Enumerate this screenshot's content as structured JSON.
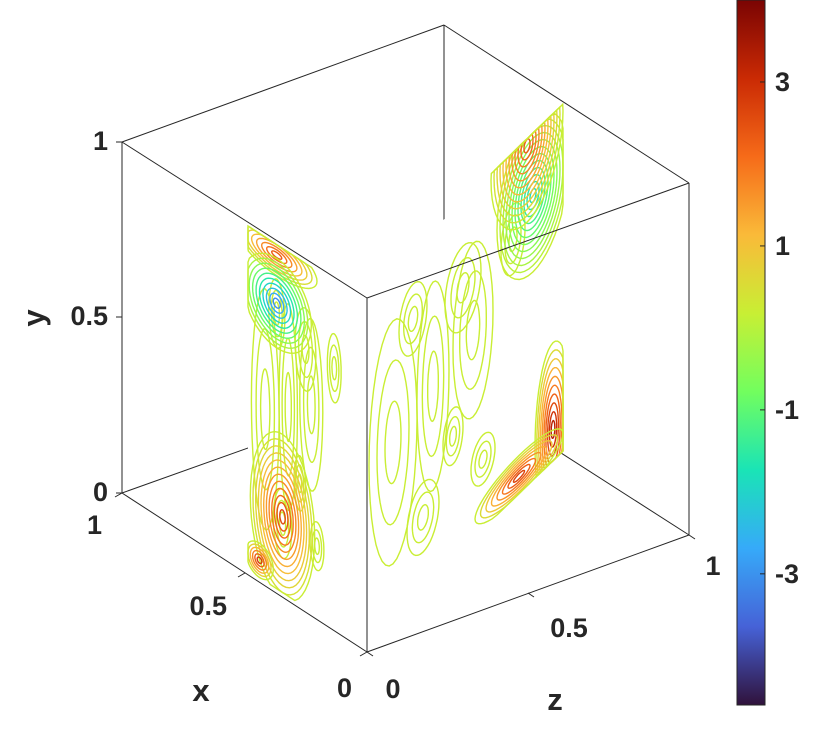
{
  "chart_data": {
    "type": "contour",
    "axes": {
      "x": {
        "label": "x",
        "range": [
          0,
          1
        ],
        "ticks": [
          "0",
          "0.5",
          "1"
        ]
      },
      "y": {
        "label": "y",
        "range": [
          0,
          1
        ],
        "ticks": [
          "0",
          "0.5",
          "1"
        ]
      },
      "z": {
        "label": "z",
        "range": [
          0,
          1
        ],
        "ticks": [
          "0",
          "0.5",
          "1"
        ]
      }
    },
    "colorbar": {
      "range": [
        -4.6,
        4.0
      ],
      "ticks": [
        {
          "value": 3,
          "label": "3"
        },
        {
          "value": 1,
          "label": "1"
        },
        {
          "value": -1,
          "label": "-1"
        },
        {
          "value": -3,
          "label": "-3"
        }
      ],
      "colormap": "turbo",
      "colors": [
        "#30123b",
        "#4662d7",
        "#36aaf9",
        "#1ae4b6",
        "#72fe5e",
        "#c8ef34",
        "#faba39",
        "#f66b19",
        "#ca2a04",
        "#7a0403"
      ]
    },
    "slices": [
      {
        "plane": "x = 0.5",
        "extrema": [
          {
            "y": 0.09,
            "z": 0.05,
            "value": 3.6,
            "kind": "max"
          },
          {
            "y": 0.82,
            "z": 0.05,
            "value": -2.0,
            "kind": "min"
          },
          {
            "y": 0.98,
            "z": 0.1,
            "value": 2.5,
            "kind": "max"
          },
          {
            "y": 0.05,
            "z": 0.07,
            "value": -3.0,
            "kind": "min"
          }
        ]
      },
      {
        "plane": "z = 0.5",
        "extrema": [
          {
            "x": 0.09,
            "y": 0.98,
            "value": 2.8,
            "kind": "max"
          },
          {
            "x": 0.09,
            "y": 0.22,
            "value": -3.4,
            "kind": "min"
          },
          {
            "x": 0.02,
            "y": 0.3,
            "value": 3.8,
            "kind": "max"
          },
          {
            "x": 0.12,
            "y": 0.02,
            "value": 2.6,
            "kind": "max"
          }
        ]
      }
    ],
    "grid": false,
    "box": true,
    "legend": "colorbar-right"
  }
}
